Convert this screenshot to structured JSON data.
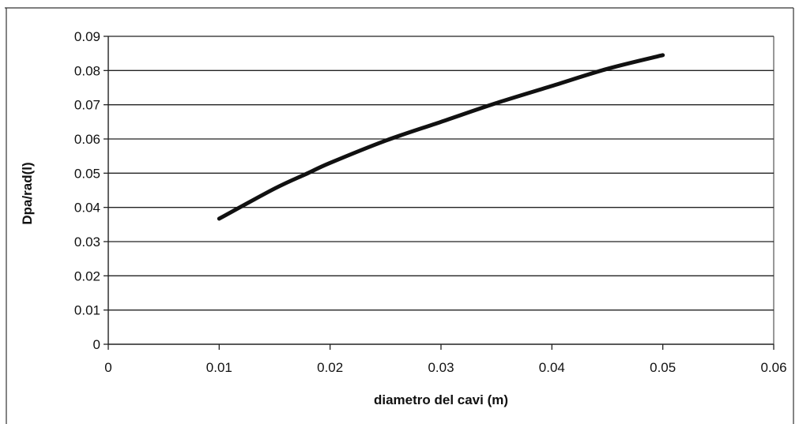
{
  "chart_data": {
    "type": "line",
    "xlabel": "diametro del cavi (m)",
    "ylabel": "Dpa/rad(l)",
    "xlim": [
      0,
      0.06
    ],
    "ylim": [
      0,
      0.09
    ],
    "x_ticks": [
      "0",
      "0.01",
      "0.02",
      "0.03",
      "0.04",
      "0.05",
      "0.06"
    ],
    "y_ticks": [
      "0",
      "0.01",
      "0.02",
      "0.03",
      "0.04",
      "0.05",
      "0.06",
      "0.07",
      "0.08",
      "0.09"
    ],
    "x_tick_values": [
      0,
      0.01,
      0.02,
      0.03,
      0.04,
      0.05,
      0.06
    ],
    "y_tick_values": [
      0,
      0.01,
      0.02,
      0.03,
      0.04,
      0.05,
      0.06,
      0.07,
      0.08,
      0.09
    ],
    "grid": "horizontal",
    "legend": "none",
    "series": [
      {
        "x": [
          0.01,
          0.015,
          0.018,
          0.02,
          0.025,
          0.03,
          0.035,
          0.04,
          0.045,
          0.05
        ],
        "y": [
          0.0367,
          0.0455,
          0.05,
          0.053,
          0.0595,
          0.065,
          0.0705,
          0.0755,
          0.0805,
          0.0845
        ],
        "color": "#111111"
      }
    ]
  }
}
